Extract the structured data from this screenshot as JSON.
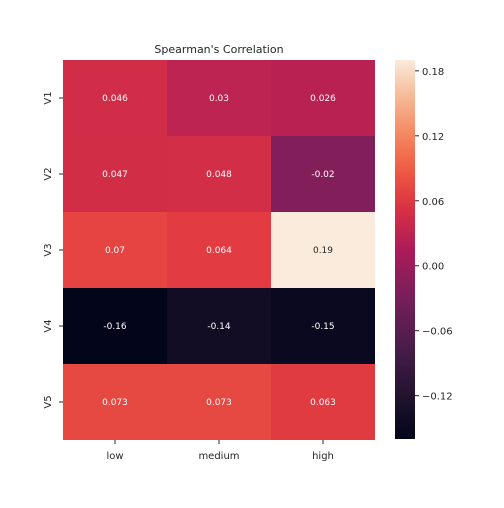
{
  "chart_data": {
    "type": "heatmap",
    "title": "Spearman's Correlation",
    "rows": [
      "V1",
      "V2",
      "V3",
      "V4",
      "V5"
    ],
    "columns": [
      "low",
      "medium",
      "high"
    ],
    "values": [
      [
        0.046,
        0.03,
        0.026
      ],
      [
        0.047,
        0.048,
        -0.02
      ],
      [
        0.07,
        0.064,
        0.19
      ],
      [
        -0.16,
        -0.14,
        -0.15
      ],
      [
        0.073,
        0.073,
        0.063
      ]
    ],
    "labels": [
      [
        "0.046",
        "0.03",
        "0.026"
      ],
      [
        "0.047",
        "0.048",
        "-0.02"
      ],
      [
        "0.07",
        "0.064",
        "0.19"
      ],
      [
        "-0.16",
        "-0.14",
        "-0.15"
      ],
      [
        "0.073",
        "0.073",
        "0.063"
      ]
    ],
    "colorbar": {
      "range": [
        -0.16,
        0.19
      ],
      "ticks": [
        0.18,
        0.12,
        0.06,
        0.0,
        -0.06,
        -0.12
      ],
      "tick_labels": [
        "0.18",
        "0.12",
        "0.06",
        "0.00",
        "−0.06",
        "−0.12"
      ],
      "colormap": "rocket"
    },
    "grid": false
  }
}
